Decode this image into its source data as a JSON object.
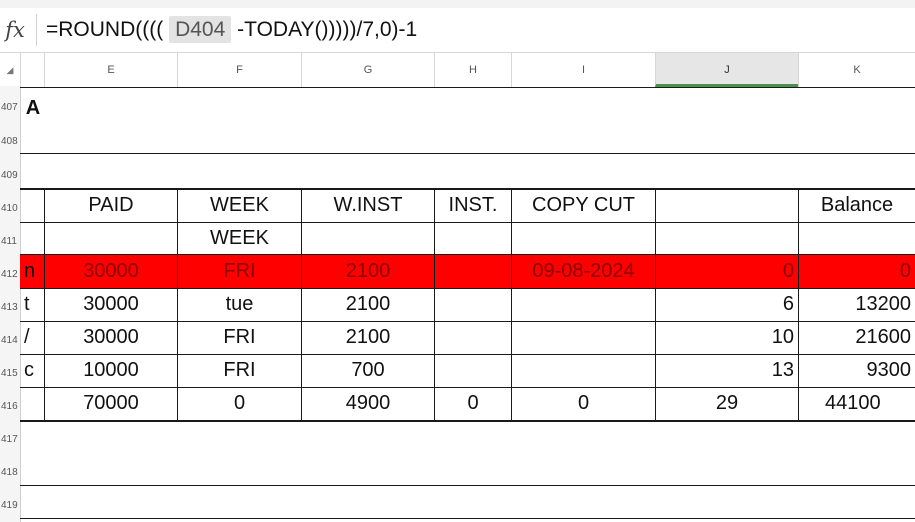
{
  "formula_bar": {
    "fx_label": "fx",
    "formula_prefix": "=ROUND((((",
    "formula_ref": "D404",
    "formula_suffix": "-TODAY()))))/7,0)-1"
  },
  "columns": {
    "corner": "◢",
    "E": "E",
    "F": "F",
    "G": "G",
    "H": "H",
    "I": "I",
    "J": "J",
    "K": "K"
  },
  "rows": {
    "r407": "407",
    "r408": "408",
    "r409": "409",
    "r410": "410",
    "r411": "411",
    "r412": "412",
    "r413": "413",
    "r414": "414",
    "r415": "415",
    "r416": "416",
    "r417": "417",
    "r418": "418",
    "r419": "419"
  },
  "row407_label": "A",
  "header": {
    "paid": "PAID",
    "week": "WEEK",
    "winst": "W.INST",
    "inst": "INST.",
    "copy_cut": "COPY CUT",
    "j": "",
    "balance": "Balance"
  },
  "row411": {
    "week": "WEEK"
  },
  "data_rows": [
    {
      "d_frag": "n",
      "paid": "30000",
      "week": "FRI",
      "winst": "2100",
      "inst": "",
      "copy_cut": "09-08-2024",
      "j": "0",
      "balance": "0"
    },
    {
      "d_frag": "t",
      "paid": "30000",
      "week": "tue",
      "winst": "2100",
      "inst": "",
      "copy_cut": "",
      "j": "6",
      "balance": "13200"
    },
    {
      "d_frag": "/",
      "paid": "30000",
      "week": "FRI",
      "winst": "2100",
      "inst": "",
      "copy_cut": "",
      "j": "10",
      "balance": "21600"
    },
    {
      "d_frag": "c",
      "paid": "10000",
      "week": "FRI",
      "winst": "700",
      "inst": "",
      "copy_cut": "",
      "j": "13",
      "balance": "9300"
    }
  ],
  "totals": {
    "paid": "70000",
    "week": "0",
    "winst": "4900",
    "inst": "0",
    "copy_cut": "0",
    "j": "29",
    "balance": "44100"
  },
  "colors": {
    "highlight_row": "#ff0000",
    "selected_column_accent": "#4d8f4d"
  }
}
